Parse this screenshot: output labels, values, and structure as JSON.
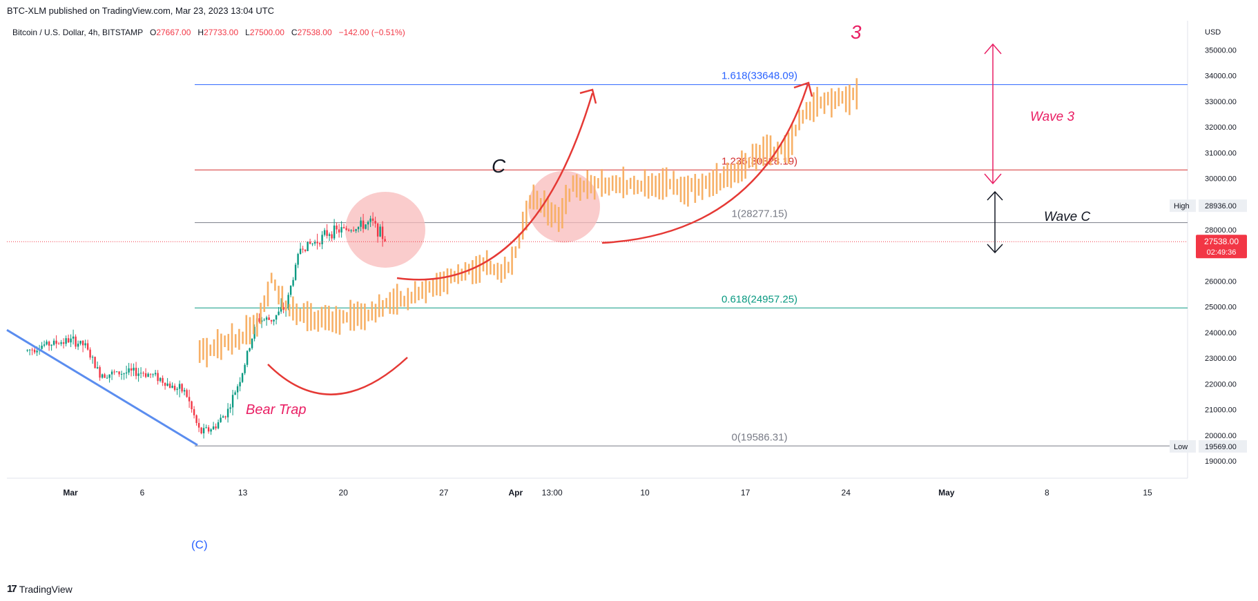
{
  "header": {
    "published": "BTC-XLM published on TradingView.com, Mar 23, 2023 13:04 UTC"
  },
  "symbol": {
    "name": "Bitcoin / U.S. Dollar, 4h, BITSTAMP",
    "o_label": "O",
    "o": "27667.00",
    "h_label": "H",
    "h": "27733.00",
    "l_label": "L",
    "l": "27500.00",
    "c_label": "C",
    "c": "27538.00",
    "change": "−142.00 (−0.51%)"
  },
  "footer": {
    "brand": "TradingView",
    "logo": "17"
  },
  "colors": {
    "up": "#089981",
    "down": "#f23645",
    "projection": "#f7b066",
    "fib_top": "#2962ff",
    "fib_mid": "#d32f2f",
    "fib_one": "#787b86",
    "fib_0618": "#089981",
    "fib_zero": "#787b86",
    "annotation_red": "#e53935",
    "annotation_pink": "#e91e63",
    "trendline": "#5b8def",
    "circle_fill": "#f8bbbb"
  },
  "chart_data": {
    "type": "candlestick",
    "timeframe": "4h",
    "y_axis": {
      "currency": "USD",
      "min": 18600,
      "max": 35600,
      "ticks": [
        "19000.00",
        "20000.00",
        "21000.00",
        "22000.00",
        "23000.00",
        "24000.00",
        "25000.00",
        "26000.00",
        "27000.00",
        "28000.00",
        "29000.00",
        "30000.00",
        "31000.00",
        "32000.00",
        "33000.00",
        "34000.00",
        "35000.00"
      ],
      "high_label": "High",
      "high_value": "28936.00",
      "low_label": "Low",
      "low_value": "19569.00",
      "last_price": "27538.00",
      "countdown": "02:49:36"
    },
    "x_axis": {
      "ticks": [
        {
          "label": "Mar",
          "date": "2023-03-01"
        },
        {
          "label": "6",
          "date": "2023-03-06"
        },
        {
          "label": "13",
          "date": "2023-03-13"
        },
        {
          "label": "20",
          "date": "2023-03-20"
        },
        {
          "label": "27",
          "date": "2023-03-27"
        },
        {
          "label": "Apr",
          "date": "2023-04-01"
        },
        {
          "label": "13:00",
          "date": "2023-04-03T13:00"
        },
        {
          "label": "10",
          "date": "2023-04-10"
        },
        {
          "label": "17",
          "date": "2023-04-17"
        },
        {
          "label": "24",
          "date": "2023-04-24"
        },
        {
          "label": "May",
          "date": "2023-05-01"
        },
        {
          "label": "8",
          "date": "2023-05-08"
        },
        {
          "label": "15",
          "date": "2023-05-15"
        }
      ]
    },
    "candle_path": [
      {
        "date": "2023-02-26",
        "price": 23300
      },
      {
        "date": "2023-02-27",
        "price": 23500
      },
      {
        "date": "2023-02-28",
        "price": 23600
      },
      {
        "date": "2023-03-01",
        "price": 23700
      },
      {
        "date": "2023-03-02",
        "price": 23500
      },
      {
        "date": "2023-03-03",
        "price": 22400
      },
      {
        "date": "2023-03-04",
        "price": 22400
      },
      {
        "date": "2023-03-05",
        "price": 22450
      },
      {
        "date": "2023-03-06",
        "price": 22450
      },
      {
        "date": "2023-03-07",
        "price": 22300
      },
      {
        "date": "2023-03-08",
        "price": 21900
      },
      {
        "date": "2023-03-09",
        "price": 21700
      },
      {
        "date": "2023-03-10",
        "price": 20100
      },
      {
        "date": "2023-03-11",
        "price": 20300
      },
      {
        "date": "2023-03-12",
        "price": 21000
      },
      {
        "date": "2023-03-13",
        "price": 22500
      },
      {
        "date": "2023-03-14",
        "price": 24500
      },
      {
        "date": "2023-03-15",
        "price": 24500
      },
      {
        "date": "2023-03-16",
        "price": 25000
      },
      {
        "date": "2023-03-17",
        "price": 27300
      },
      {
        "date": "2023-03-18",
        "price": 27500
      },
      {
        "date": "2023-03-19",
        "price": 27900
      },
      {
        "date": "2023-03-20",
        "price": 28000
      },
      {
        "date": "2023-03-21",
        "price": 28100
      },
      {
        "date": "2023-03-22",
        "price": 28300
      },
      {
        "date": "2023-03-23",
        "price": 27538
      }
    ],
    "projection_path": [
      {
        "date": "2023-03-10",
        "price": 23200
      },
      {
        "date": "2023-03-13",
        "price": 23900
      },
      {
        "date": "2023-03-14",
        "price": 24300
      },
      {
        "date": "2023-03-15",
        "price": 26000
      },
      {
        "date": "2023-03-16",
        "price": 25000
      },
      {
        "date": "2023-03-18",
        "price": 24500
      },
      {
        "date": "2023-03-20",
        "price": 24500
      },
      {
        "date": "2023-03-22",
        "price": 24800
      },
      {
        "date": "2023-03-25",
        "price": 25500
      },
      {
        "date": "2023-03-28",
        "price": 26300
      },
      {
        "date": "2023-03-30",
        "price": 26600
      },
      {
        "date": "2023-03-31",
        "price": 26200
      },
      {
        "date": "2023-04-01",
        "price": 27000
      },
      {
        "date": "2023-04-02",
        "price": 29200
      },
      {
        "date": "2023-04-03",
        "price": 29000
      },
      {
        "date": "2023-04-04",
        "price": 28400
      },
      {
        "date": "2023-04-05",
        "price": 29700
      },
      {
        "date": "2023-04-08",
        "price": 29700
      },
      {
        "date": "2023-04-11",
        "price": 29800
      },
      {
        "date": "2023-04-13",
        "price": 29600
      },
      {
        "date": "2023-04-16",
        "price": 30100
      },
      {
        "date": "2023-04-18",
        "price": 31000
      },
      {
        "date": "2023-04-20",
        "price": 31100
      },
      {
        "date": "2023-04-21",
        "price": 32500
      },
      {
        "date": "2023-04-22",
        "price": 33000
      },
      {
        "date": "2023-04-24",
        "price": 33100
      },
      {
        "date": "2023-04-25",
        "price": 33400
      }
    ],
    "fib_levels": [
      {
        "ratio": "1.618",
        "label": "1.618(33648.09)",
        "price": 33648.09,
        "color": "#2962ff"
      },
      {
        "ratio": "1.236",
        "label": "1.236(30328.19)",
        "price": 30328.19,
        "color": "#d32f2f"
      },
      {
        "ratio": "1",
        "label": "1(28277.15)",
        "price": 28277.15,
        "color": "#787b86"
      },
      {
        "ratio": "0.618",
        "label": "0.618(24957.25)",
        "price": 24957.25,
        "color": "#089981"
      },
      {
        "ratio": "0",
        "label": "0(19586.31)",
        "price": 19586.31,
        "color": "#787b86"
      }
    ],
    "annotations": {
      "wave_number": "3",
      "wave3": "Wave 3",
      "wavec": "Wave C",
      "c_label": "C",
      "c_paren": "(C)",
      "bear_trap": "Bear Trap"
    }
  }
}
